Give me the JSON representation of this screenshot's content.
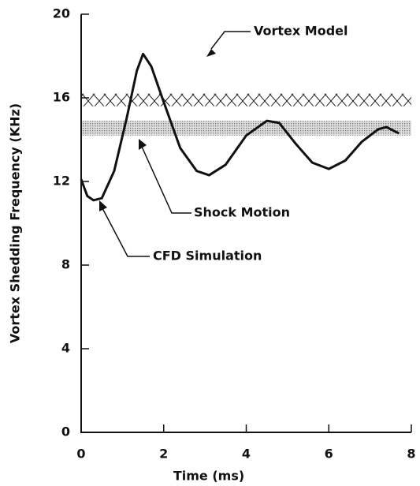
{
  "chart_data": {
    "type": "line",
    "x_label": "Time (ms)",
    "y_label": "Vortex Shedding Frequency (KHz)",
    "x": [
      0,
      0.15,
      0.3,
      0.5,
      0.8,
      1.1,
      1.35,
      1.5,
      1.7,
      2,
      2.4,
      2.8,
      3.1,
      3.5,
      4,
      4.5,
      4.8,
      5.2,
      5.6,
      6,
      6.4,
      6.8,
      7.2,
      7.4,
      7.7
    ],
    "series": [
      {
        "name": "CFD Simulation",
        "color": "#111111",
        "values": [
          12.1,
          11.3,
          11.1,
          11.2,
          12.5,
          15,
          17.3,
          18.1,
          17.5,
          15.8,
          13.6,
          12.5,
          12.3,
          12.8,
          14.2,
          14.9,
          14.8,
          13.8,
          12.9,
          12.6,
          13,
          13.9,
          14.5,
          14.6,
          14.3
        ]
      }
    ],
    "bands": [
      {
        "name": "Vortex Model",
        "range": [
          15.6,
          16.2
        ]
      },
      {
        "name": "Shock Motion",
        "range": [
          14.2,
          14.9
        ]
      }
    ],
    "xlim": [
      0,
      8
    ],
    "xticks": [
      0,
      2,
      4,
      6,
      8
    ],
    "ylim": [
      0,
      20
    ],
    "yticks": [
      0,
      4,
      8,
      12,
      16,
      20
    ]
  }
}
